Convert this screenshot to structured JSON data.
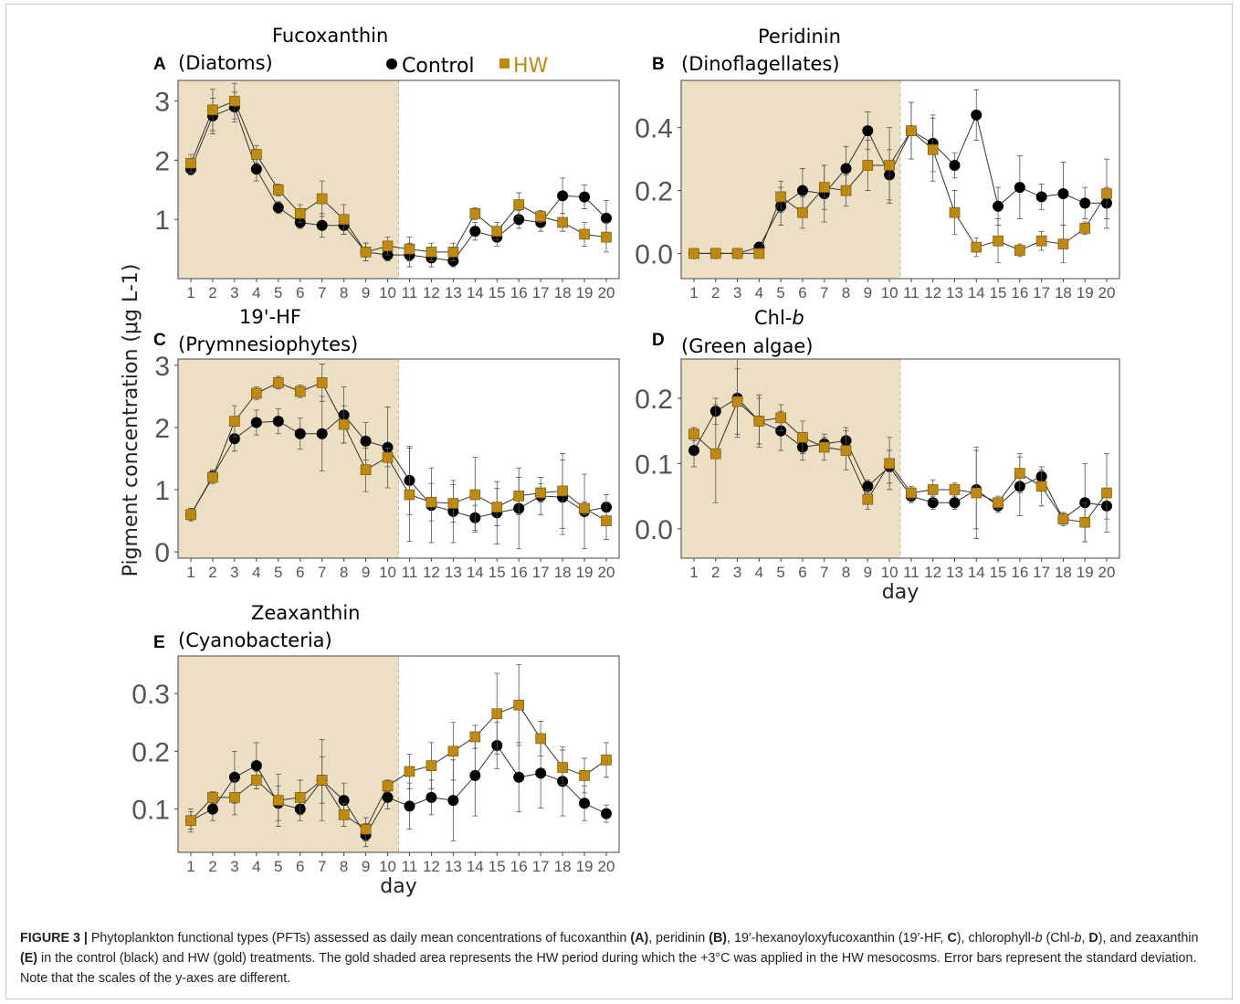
{
  "legend": {
    "items": [
      {
        "label": "Control",
        "color": "#000000",
        "marker": "circle"
      },
      {
        "label": "HW",
        "color": "#bf8a12",
        "marker": "square"
      }
    ]
  },
  "shared": {
    "ylabel": "Pigment concentration (μg L-1)",
    "xlabel": "day",
    "hw_shading_color": "#eddfc4",
    "control_color": "#000000",
    "hw_color": "#bf8a12",
    "hw_period_days": [
      1,
      10
    ]
  },
  "chart_data": [
    {
      "letter": "A",
      "title": "Fucoxanthin",
      "subtitle": "(Diatoms)",
      "type": "line",
      "x": [
        1,
        2,
        3,
        4,
        5,
        6,
        7,
        8,
        9,
        10,
        11,
        12,
        13,
        14,
        15,
        16,
        17,
        18,
        19,
        20
      ],
      "ylim": [
        0,
        3.35
      ],
      "yticks": [
        "1",
        "2",
        "3"
      ],
      "ytick_values": [
        1,
        2,
        3
      ],
      "xlabel": "",
      "series": [
        {
          "name": "Control",
          "values": [
            1.85,
            2.75,
            2.9,
            1.85,
            1.2,
            0.95,
            0.9,
            0.9,
            0.45,
            0.4,
            0.4,
            0.35,
            0.3,
            0.8,
            0.7,
            1.0,
            0.95,
            1.4,
            1.38,
            1.02
          ],
          "errors": [
            0.1,
            0.3,
            0.25,
            0.2,
            0.1,
            0.1,
            0.2,
            0.15,
            0.15,
            0.1,
            0.2,
            0.15,
            0.1,
            0.15,
            0.15,
            0.15,
            0.15,
            0.3,
            0.2,
            0.3
          ]
        },
        {
          "name": "HW",
          "values": [
            1.95,
            2.85,
            3.0,
            2.1,
            1.5,
            1.1,
            1.35,
            1.0,
            0.45,
            0.55,
            0.5,
            0.45,
            0.45,
            1.1,
            0.8,
            1.25,
            1.05,
            0.95,
            0.75,
            0.7
          ],
          "errors": [
            0.15,
            0.35,
            0.3,
            0.15,
            0.1,
            0.15,
            0.3,
            0.25,
            0.15,
            0.15,
            0.2,
            0.15,
            0.15,
            0.1,
            0.15,
            0.2,
            0.1,
            0.15,
            0.2,
            0.25
          ]
        }
      ]
    },
    {
      "letter": "B",
      "title": "Peridinin",
      "subtitle": "(Dinoflagellates)",
      "type": "line",
      "x": [
        1,
        2,
        3,
        4,
        5,
        6,
        7,
        8,
        9,
        10,
        11,
        12,
        13,
        14,
        15,
        16,
        17,
        18,
        19,
        20
      ],
      "ylim": [
        -0.08,
        0.55
      ],
      "yticks": [
        "0.0",
        "0.2",
        "0.4"
      ],
      "ytick_values": [
        0,
        0.2,
        0.4
      ],
      "xlabel": "",
      "series": [
        {
          "name": "Control",
          "values": [
            0,
            0,
            0,
            0.02,
            0.15,
            0.2,
            0.19,
            0.27,
            0.39,
            0.25,
            0.39,
            0.35,
            0.28,
            0.44,
            0.15,
            0.21,
            0.18,
            0.19,
            0.16,
            0.16
          ],
          "errors": [
            0,
            0,
            0,
            0.01,
            0.06,
            0.07,
            0.09,
            0.07,
            0.06,
            0.08,
            0.09,
            0.09,
            0.04,
            0.08,
            0.06,
            0.1,
            0.04,
            0.1,
            0.05,
            0.05
          ]
        },
        {
          "name": "HW",
          "values": [
            0,
            0,
            0,
            0,
            0.18,
            0.13,
            0.21,
            0.2,
            0.28,
            0.28,
            0.39,
            0.33,
            0.13,
            0.02,
            0.04,
            0.01,
            0.04,
            0.03,
            0.08,
            0.19
          ],
          "errors": [
            0,
            0,
            0,
            0,
            0.05,
            0.05,
            0.07,
            0.05,
            0.08,
            0.12,
            0.09,
            0.1,
            0.07,
            0.03,
            0.07,
            0.02,
            0.03,
            0.06,
            0.02,
            0.11
          ]
        }
      ]
    },
    {
      "letter": "C",
      "title": "19'-HF",
      "subtitle": "(Prymnesiophytes)",
      "type": "line",
      "x": [
        1,
        2,
        3,
        4,
        5,
        6,
        7,
        8,
        9,
        10,
        11,
        12,
        13,
        14,
        15,
        16,
        17,
        18,
        19,
        20
      ],
      "ylim": [
        -0.1,
        3.1
      ],
      "yticks": [
        "0",
        "1",
        "2",
        "3"
      ],
      "ytick_values": [
        0,
        1,
        2,
        3
      ],
      "xlabel": "",
      "series": [
        {
          "name": "Control",
          "values": [
            0.6,
            1.22,
            1.82,
            2.08,
            2.1,
            1.9,
            1.9,
            2.2,
            1.78,
            1.68,
            1.15,
            0.75,
            0.65,
            0.55,
            0.63,
            0.7,
            0.9,
            0.88,
            0.65,
            0.72
          ],
          "errors": [
            0.1,
            0.1,
            0.2,
            0.2,
            0.2,
            0.25,
            0.6,
            0.45,
            0.3,
            0.65,
            0.55,
            0.6,
            0.5,
            0.2,
            0.5,
            0.65,
            0.3,
            0.6,
            0.6,
            0.2
          ]
        },
        {
          "name": "HW",
          "values": [
            0.6,
            1.2,
            2.1,
            2.55,
            2.72,
            2.58,
            2.72,
            2.05,
            1.32,
            1.52,
            0.92,
            0.8,
            0.78,
            0.92,
            0.72,
            0.9,
            0.95,
            0.98,
            0.7,
            0.5
          ],
          "errors": [
            0.1,
            0.1,
            0.25,
            0.1,
            0.1,
            0.1,
            0.3,
            0.3,
            0.35,
            0.15,
            0.75,
            0.3,
            0.3,
            0.6,
            0.3,
            0.3,
            0.15,
            0.6,
            0.1,
            0.3
          ]
        }
      ]
    },
    {
      "letter": "D",
      "title": "Chl-b",
      "subtitle": "(Green algae)",
      "type": "line",
      "x": [
        1,
        2,
        3,
        4,
        5,
        6,
        7,
        8,
        9,
        10,
        11,
        12,
        13,
        14,
        15,
        16,
        17,
        18,
        19,
        20
      ],
      "ylim": [
        -0.045,
        0.26
      ],
      "yticks": [
        "0.0",
        "0.1",
        "0.2"
      ],
      "ytick_values": [
        0,
        0.1,
        0.2
      ],
      "xlabel": "day",
      "series": [
        {
          "name": "Control",
          "values": [
            0.12,
            0.18,
            0.2,
            0.165,
            0.15,
            0.125,
            0.13,
            0.135,
            0.065,
            0.095,
            0.05,
            0.04,
            0.04,
            0.06,
            0.035,
            0.065,
            0.08,
            0.015,
            0.04,
            0.035
          ],
          "errors": [
            0.025,
            0.02,
            0.06,
            0.04,
            0.03,
            0.02,
            0.01,
            0.02,
            0.01,
            0.025,
            0.01,
            0.01,
            0.01,
            0.06,
            0.01,
            0.045,
            0.01,
            0.01,
            0.06,
            0.02
          ]
        },
        {
          "name": "HW",
          "values": [
            0.145,
            0.115,
            0.195,
            0.165,
            0.17,
            0.14,
            0.125,
            0.12,
            0.045,
            0.1,
            0.055,
            0.06,
            0.06,
            0.055,
            0.04,
            0.085,
            0.065,
            0.015,
            0.01,
            0.055
          ],
          "errors": [
            0.01,
            0.075,
            0.05,
            0.035,
            0.02,
            0.025,
            0.02,
            0.03,
            0.015,
            0.04,
            0.01,
            0.015,
            0.01,
            0.07,
            0.01,
            0.03,
            0.03,
            0.01,
            0.03,
            0.06
          ]
        }
      ]
    },
    {
      "letter": "E",
      "title": "Zeaxanthin",
      "subtitle": "(Cyanobacteria)",
      "type": "line",
      "x": [
        1,
        2,
        3,
        4,
        5,
        6,
        7,
        8,
        9,
        10,
        11,
        12,
        13,
        14,
        15,
        16,
        17,
        18,
        19,
        20
      ],
      "ylim": [
        0.025,
        0.365
      ],
      "yticks": [
        "0.1",
        "0.2",
        "0.3"
      ],
      "ytick_values": [
        0.1,
        0.2,
        0.3
      ],
      "xlabel": "day",
      "series": [
        {
          "name": "Control",
          "values": [
            0.08,
            0.1,
            0.155,
            0.175,
            0.11,
            0.1,
            0.15,
            0.115,
            0.055,
            0.12,
            0.105,
            0.12,
            0.115,
            0.158,
            0.21,
            0.155,
            0.162,
            0.148,
            0.11,
            0.092
          ],
          "errors": [
            0.015,
            0.02,
            0.045,
            0.04,
            0.03,
            0.02,
            0.07,
            0.03,
            0.02,
            0.02,
            0.04,
            0.03,
            0.07,
            0.07,
            0.04,
            0.06,
            0.06,
            0.06,
            0.03,
            0.015
          ]
        },
        {
          "name": "HW",
          "values": [
            0.08,
            0.12,
            0.12,
            0.15,
            0.115,
            0.12,
            0.15,
            0.09,
            0.065,
            0.14,
            0.165,
            0.175,
            0.2,
            0.225,
            0.265,
            0.28,
            0.222,
            0.172,
            0.158,
            0.185
          ],
          "errors": [
            0.02,
            0.01,
            0.03,
            0.015,
            0.045,
            0.03,
            0.04,
            0.02,
            0.02,
            0.01,
            0.03,
            0.04,
            0.05,
            0.02,
            0.07,
            0.07,
            0.03,
            0.03,
            0.03,
            0.03
          ]
        }
      ]
    }
  ],
  "caption": {
    "label": "FIGURE 3 |",
    "t1": " Phytoplankton functional types (PFTs) assessed as daily mean concentrations of fucoxanthin ",
    "a": "(A)",
    "t2": ", peridinin ",
    "b": "(B)",
    "t3": ", 19′-hexanoyloxyfucoxanthin (19′-HF, ",
    "c": "C",
    "t4": "), chlorophyll-",
    "t4i": "b",
    "t5": " (Chl-",
    "t5i": "b",
    "t6": ", ",
    "d": "D",
    "t7": "), and zeaxanthin ",
    "e": "(E)",
    "t8": " in the control (black) and HW (gold) treatments. The gold shaded area represents the HW period during which the +3°C was applied in the HW mesocosms. Error bars represent the standard deviation. Note that the scales of the y-axes are different."
  }
}
